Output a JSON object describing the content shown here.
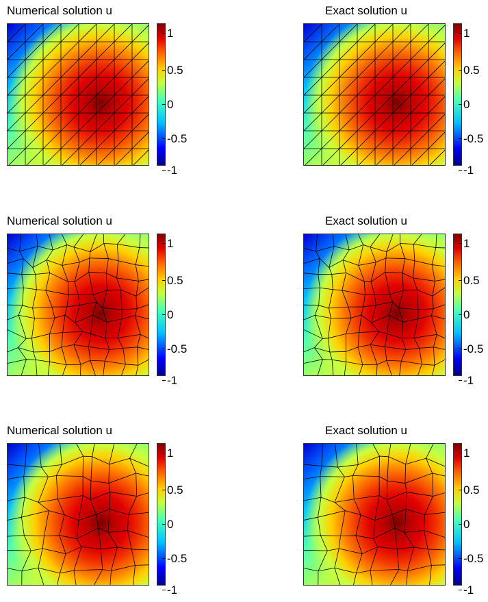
{
  "chart_data": [
    {
      "type": "heatmap",
      "title": "Numerical solution u",
      "mesh": "structured-triangles",
      "colorbar": {
        "ticks": [
          "1",
          "0.5",
          "0",
          "-0.5",
          "-1"
        ],
        "range": [
          -1,
          1
        ]
      }
    },
    {
      "type": "heatmap",
      "title": "Exact solution u",
      "mesh": "structured-triangles",
      "colorbar": {
        "ticks": [
          "1",
          "0.5",
          "0",
          "-0.5",
          "-1"
        ],
        "range": [
          -1,
          1
        ]
      }
    },
    {
      "type": "heatmap",
      "title": "Numerical solution u",
      "mesh": "polygonal",
      "colorbar": {
        "ticks": [
          "1",
          "0.5",
          "0",
          "-0.5",
          "-1"
        ],
        "range": [
          -1,
          1
        ]
      }
    },
    {
      "type": "heatmap",
      "title": "Exact solution u",
      "mesh": "polygonal",
      "colorbar": {
        "ticks": [
          "1",
          "0.5",
          "0",
          "-0.5",
          "-1"
        ],
        "range": [
          -1,
          1
        ]
      }
    },
    {
      "type": "heatmap",
      "title": "Numerical solution u",
      "mesh": "polygonal-coarse",
      "colorbar": {
        "ticks": [
          "1",
          "0.5",
          "0",
          "-0.5",
          "-1"
        ],
        "range": [
          -1,
          1
        ]
      }
    },
    {
      "type": "heatmap",
      "title": "Exact solution u",
      "mesh": "polygonal-coarse",
      "colorbar": {
        "ticks": [
          "1",
          "0.5",
          "0",
          "-0.5",
          "-1"
        ],
        "range": [
          -1,
          1
        ]
      }
    }
  ]
}
